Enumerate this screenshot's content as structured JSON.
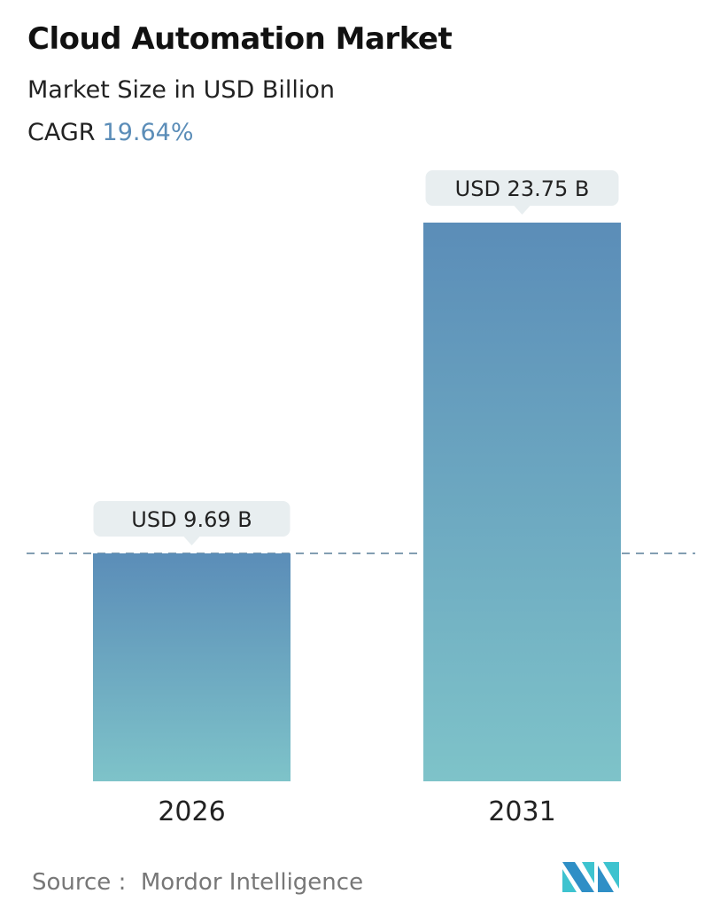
{
  "header": {
    "title": "Cloud Automation Market",
    "subtitle": "Market Size in USD Billion",
    "cagr_label": "CAGR",
    "cagr_value": "19.64%"
  },
  "chart_data": {
    "type": "bar",
    "categories": [
      "2026",
      "2031"
    ],
    "values": [
      9.69,
      23.75
    ],
    "data_labels": [
      "USD 9.69 B",
      "USD 23.75 B"
    ],
    "title": "Cloud Automation Market",
    "ylabel": "Market Size in USD Billion",
    "grid": false,
    "reference_line": {
      "value": 9.69,
      "style": "dashed"
    },
    "colors": {
      "bar_top": "#5b8db8",
      "bar_bottom": "#7ec3c9",
      "label_bg": "#e8eef0",
      "line": "#5a7f99"
    }
  },
  "footer": {
    "source_label": "Source :",
    "source_value": "Mordor Intelligence"
  },
  "logo": {
    "colors": [
      "#2f8fc6",
      "#3ec3cf"
    ]
  }
}
